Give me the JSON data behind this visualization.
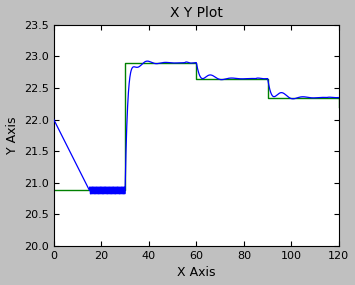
{
  "title": "X Y Plot",
  "xlabel": "X Axis",
  "ylabel": "Y Axis",
  "xlim": [
    0,
    120
  ],
  "ylim": [
    20,
    23.5
  ],
  "xticks": [
    0,
    20,
    40,
    60,
    80,
    100,
    120
  ],
  "yticks": [
    20,
    20.5,
    21,
    21.5,
    22,
    22.5,
    23,
    23.5
  ],
  "green_color": "#008000",
  "blue_color": "#0000FF",
  "bg_color": "#FFFFFF",
  "fig_bg": "#C0C0C0",
  "green_steps": [
    [
      0,
      20.88
    ],
    [
      30,
      20.88
    ],
    [
      30,
      22.9
    ],
    [
      60,
      22.9
    ],
    [
      60,
      22.65
    ],
    [
      90,
      22.65
    ],
    [
      90,
      22.35
    ],
    [
      120,
      22.35
    ],
    [
      120,
      22.2
    ]
  ],
  "blue_start": 22.0,
  "blue_bottom": 20.88,
  "blue_drop_end_x": 15,
  "blue_osc_amp": 0.055,
  "blue_osc_freq": 1.8,
  "blue_rise_x": 30,
  "blue_overshoot": 23.05,
  "blue_settle1": 22.9,
  "blue_step2_settle": 22.65,
  "blue_step3_settle": 22.35
}
